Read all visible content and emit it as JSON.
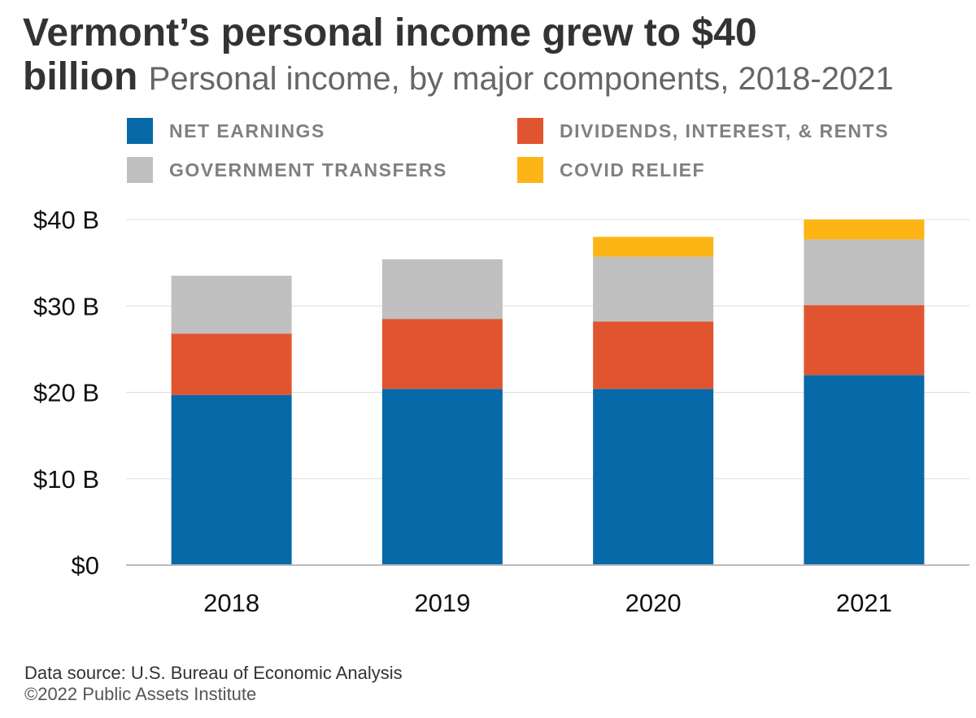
{
  "title": {
    "line1": "Vermont’s personal income grew to $40",
    "line2": "billion",
    "subtitle": "Personal income, by major components, 2018-2021"
  },
  "legend": [
    {
      "label": "NET EARNINGS",
      "color": "#0869a8"
    },
    {
      "label": "DIVIDENDS, INTEREST, & RENTS",
      "color": "#e05530"
    },
    {
      "label": "GOVERNMENT TRANSFERS",
      "color": "#c0c0c0"
    },
    {
      "label": "COVID RELIEF",
      "color": "#fdb515"
    }
  ],
  "footer": {
    "source": "Data source: U.S. Bureau of Economic Analysis",
    "copyright": "©2022 Public Assets Institute"
  },
  "chart_data": {
    "type": "bar",
    "stacked": true,
    "categories": [
      "2018",
      "2019",
      "2020",
      "2021"
    ],
    "series": [
      {
        "name": "NET EARNINGS",
        "color": "#0869a8",
        "values": [
          19.7,
          20.4,
          20.4,
          22.0
        ]
      },
      {
        "name": "DIVIDENDS, INTEREST, & RENTS",
        "color": "#e05530",
        "values": [
          7.1,
          8.1,
          7.8,
          8.1
        ]
      },
      {
        "name": "GOVERNMENT TRANSFERS",
        "color": "#c0c0c0",
        "values": [
          6.7,
          6.9,
          7.5,
          7.6
        ]
      },
      {
        "name": "COVID RELIEF",
        "color": "#fdb515",
        "values": [
          0,
          0,
          2.3,
          2.3
        ]
      }
    ],
    "y_ticks": [
      0,
      10,
      20,
      30,
      40
    ],
    "y_tick_labels": [
      "$0",
      "$10 B",
      "$20 B",
      "$30 B",
      "$40 B"
    ],
    "ylim": [
      0,
      40
    ],
    "grid": true,
    "legend_position": "top"
  }
}
